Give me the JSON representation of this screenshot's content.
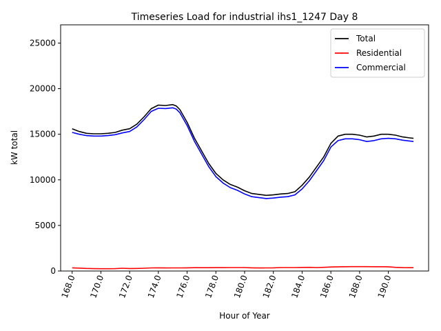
{
  "chart_data": {
    "type": "line",
    "title": "Timeseries Load for industrial ihs1_1247  Day 8",
    "xlabel": "Hour of Year",
    "ylabel": "kW total",
    "xlim": [
      167.2,
      192.8
    ],
    "ylim": [
      0,
      27000
    ],
    "x_ticks": [
      168,
      170,
      172,
      174,
      176,
      178,
      180,
      182,
      184,
      186,
      188,
      190
    ],
    "x_tick_labels": [
      "168.0",
      "170.0",
      "172.0",
      "174.0",
      "176.0",
      "178.0",
      "180.0",
      "182.0",
      "184.0",
      "186.0",
      "188.0",
      "190.0"
    ],
    "y_ticks": [
      0,
      5000,
      10000,
      15000,
      20000,
      25000
    ],
    "y_tick_labels": [
      "0",
      "5000",
      "10000",
      "15000",
      "20000",
      "25000"
    ],
    "legend_position": "top-right",
    "grid": false,
    "x": [
      168.0,
      168.5,
      169.0,
      169.5,
      170.0,
      170.5,
      171.0,
      171.5,
      172.0,
      172.5,
      173.0,
      173.5,
      174.0,
      174.5,
      175.0,
      175.25,
      175.5,
      176.0,
      176.5,
      177.0,
      177.5,
      178.0,
      178.5,
      179.0,
      179.5,
      180.0,
      180.5,
      181.0,
      181.5,
      182.0,
      182.5,
      183.0,
      183.5,
      184.0,
      184.5,
      185.0,
      185.5,
      186.0,
      186.5,
      187.0,
      187.5,
      188.0,
      188.5,
      189.0,
      189.5,
      190.0,
      190.5,
      191.0,
      191.5,
      191.75
    ],
    "series": [
      {
        "name": "Total",
        "color": "#000000",
        "values": [
          15600,
          15300,
          15100,
          15050,
          15050,
          15100,
          15200,
          15450,
          15600,
          16100,
          16900,
          17800,
          18200,
          18150,
          18250,
          18100,
          17700,
          16300,
          14600,
          13200,
          11800,
          10700,
          10000,
          9500,
          9200,
          8800,
          8500,
          8400,
          8300,
          8350,
          8450,
          8500,
          8700,
          9400,
          10300,
          11400,
          12500,
          14000,
          14800,
          15000,
          15000,
          14900,
          14700,
          14800,
          15000,
          15000,
          14900,
          14700,
          14600,
          14550
        ]
      },
      {
        "name": "Residential",
        "color": "#ff0000",
        "values": [
          350,
          320,
          280,
          260,
          250,
          250,
          260,
          300,
          270,
          280,
          300,
          340,
          350,
          330,
          340,
          340,
          340,
          350,
          360,
          360,
          360,
          370,
          370,
          380,
          380,
          380,
          350,
          330,
          340,
          350,
          380,
          380,
          380,
          390,
          400,
          380,
          400,
          440,
          460,
          470,
          480,
          480,
          480,
          470,
          470,
          460,
          400,
          370,
          360,
          360
        ]
      },
      {
        "name": "Commercial",
        "color": "#0000ff",
        "values": [
          15200,
          15000,
          14850,
          14800,
          14800,
          14850,
          14950,
          15150,
          15300,
          15800,
          16600,
          17500,
          17850,
          17820,
          17900,
          17750,
          17350,
          15950,
          14250,
          12850,
          11450,
          10350,
          9650,
          9150,
          8850,
          8450,
          8150,
          8050,
          7950,
          8000,
          8100,
          8150,
          8350,
          9000,
          9900,
          11000,
          12100,
          13600,
          14300,
          14500,
          14500,
          14400,
          14200,
          14300,
          14500,
          14550,
          14500,
          14350,
          14250,
          14200
        ]
      }
    ]
  }
}
